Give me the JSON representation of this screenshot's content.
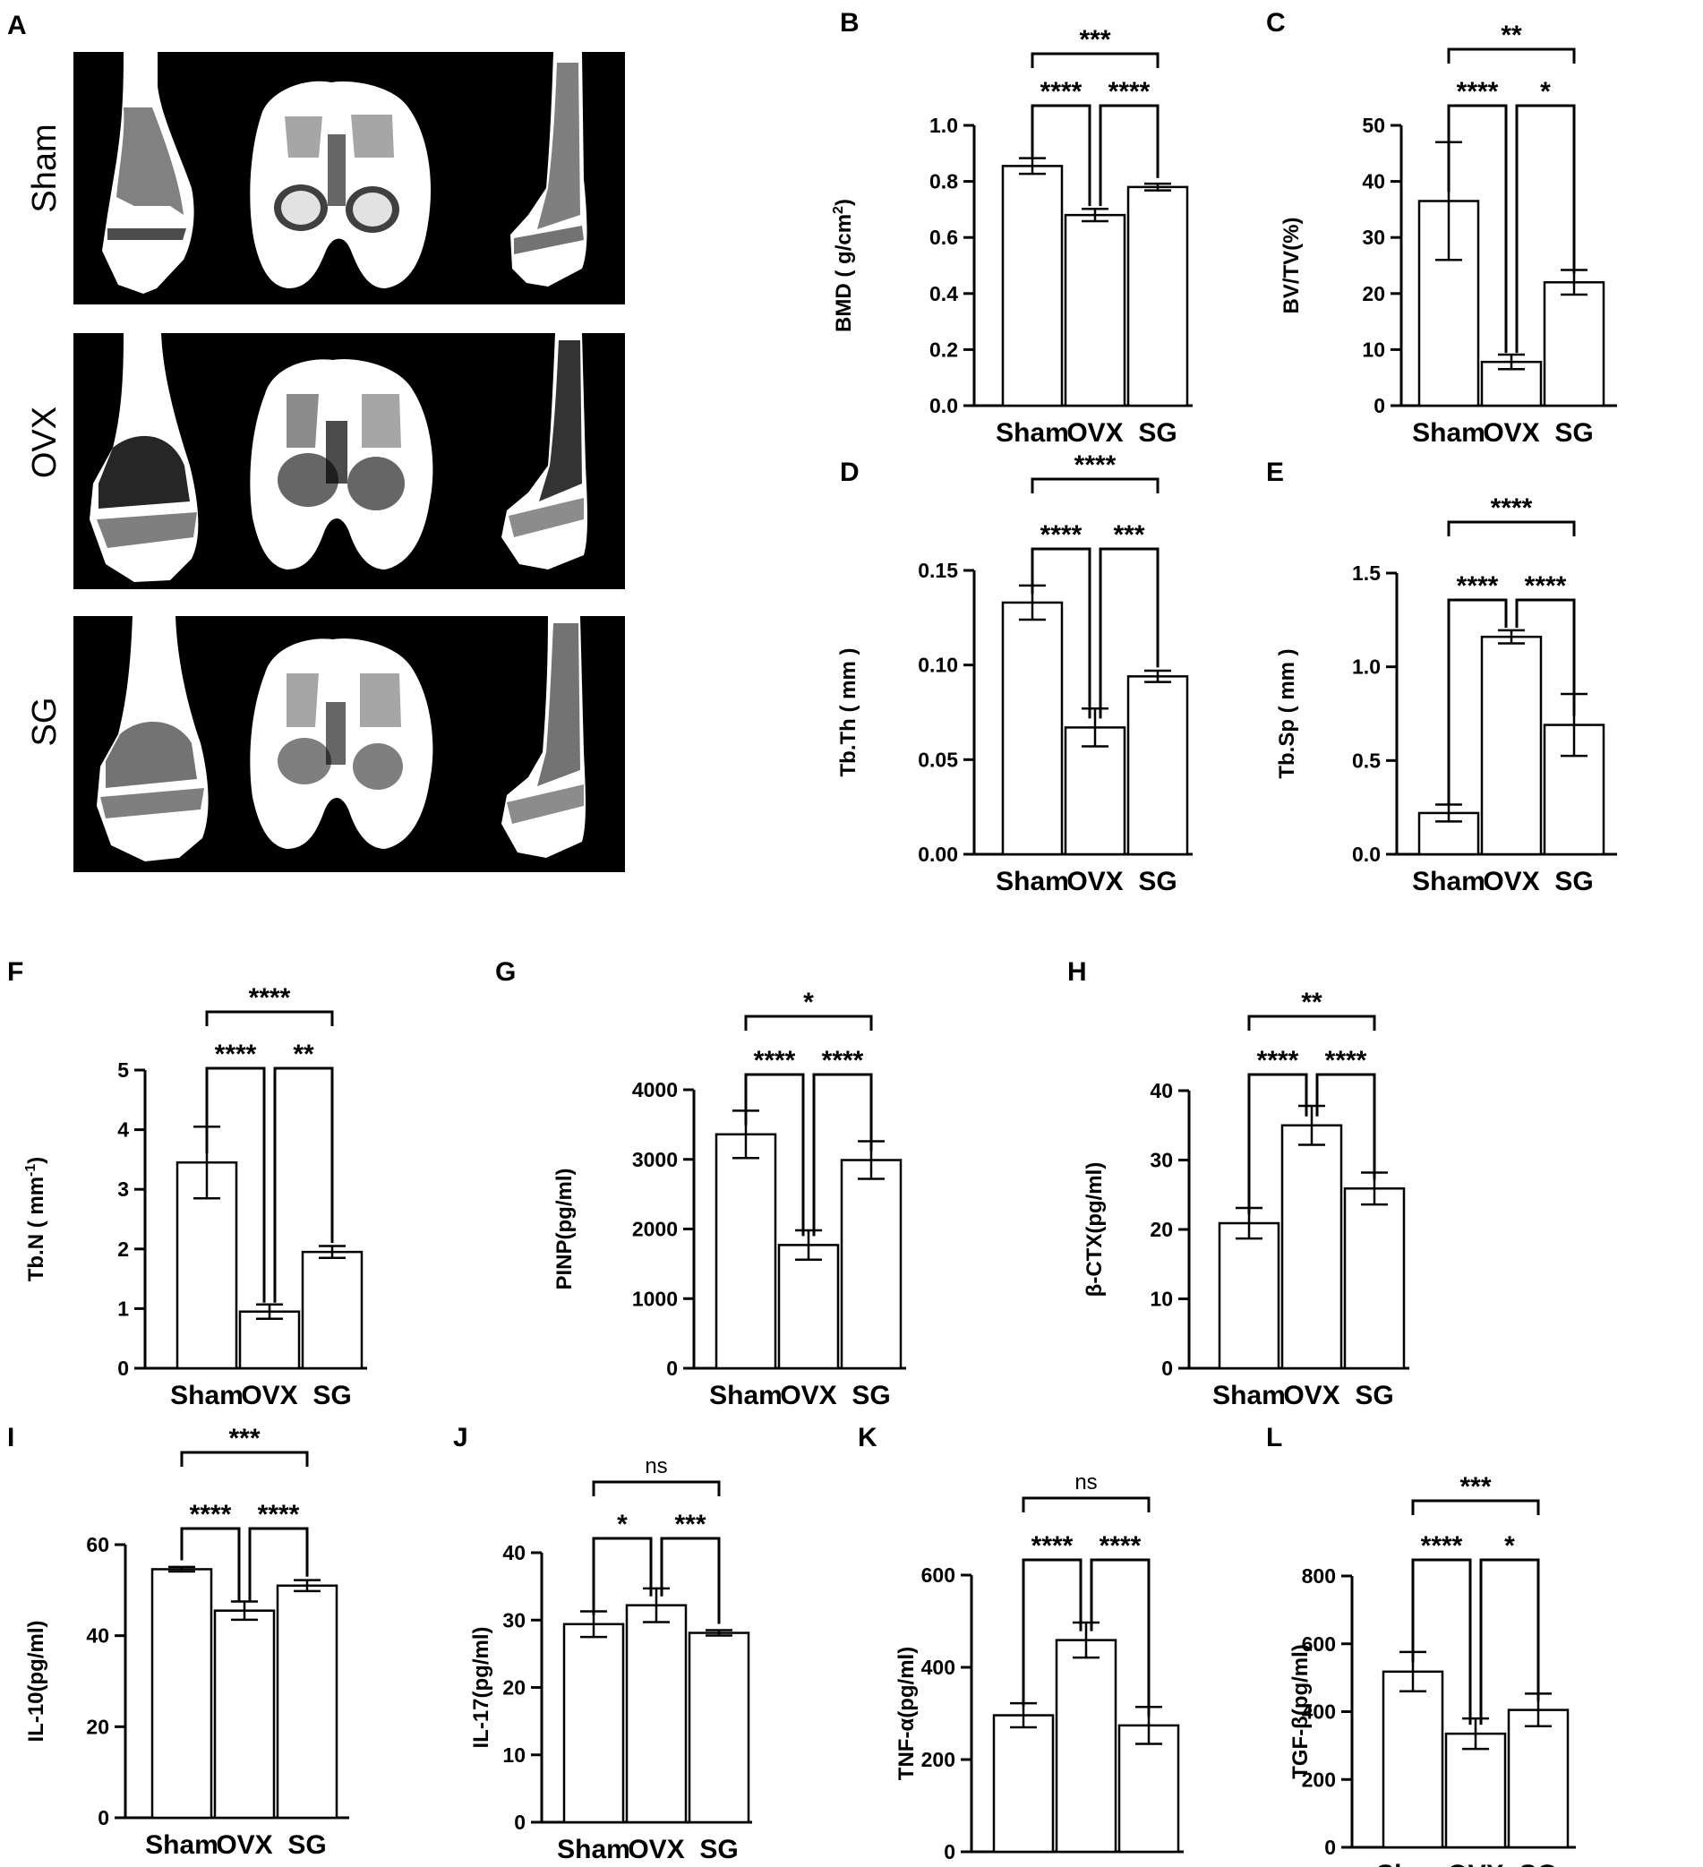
{
  "micro_ct": {
    "panel_letter": "A",
    "rows": [
      {
        "label": "Sham",
        "image": "micro-CT reconstruction of distal femur"
      },
      {
        "label": "OVX",
        "image": "micro-CT reconstruction of distal femur"
      },
      {
        "label": "SG",
        "image": "micro-CT reconstruction of distal femur"
      }
    ]
  },
  "chart_data": [
    {
      "panel": "B",
      "type": "bar",
      "categories": [
        "Sham",
        "OVX",
        "SG"
      ],
      "values": [
        0.855,
        0.68,
        0.78
      ],
      "errors": [
        0.028,
        0.022,
        0.012
      ],
      "ylabel": "BMD ( g/cm",
      "ylabel_sup": "2",
      "ylabel_end": ")",
      "ylim": [
        0,
        1.0
      ],
      "yticks": [
        0.0,
        0.2,
        0.4,
        0.6,
        0.8,
        1.0
      ],
      "tick_labels": [
        "0.0",
        "0.2",
        "0.4",
        "0.6",
        "0.8",
        "1.0"
      ],
      "significance": [
        {
          "from": 0,
          "to": 1,
          "label": "****"
        },
        {
          "from": 1,
          "to": 2,
          "label": "****"
        },
        {
          "from": 0,
          "to": 2,
          "label": "***"
        }
      ]
    },
    {
      "panel": "C",
      "type": "bar",
      "categories": [
        "Sham",
        "OVX",
        "SG"
      ],
      "values": [
        36.5,
        7.8,
        22.0
      ],
      "errors": [
        10.5,
        1.3,
        2.2
      ],
      "ylabel": "BV/TV(%)",
      "ylim": [
        0,
        50
      ],
      "yticks": [
        0,
        10,
        20,
        30,
        40,
        50
      ],
      "tick_labels": [
        "0",
        "10",
        "20",
        "30",
        "40",
        "50"
      ],
      "significance": [
        {
          "from": 0,
          "to": 1,
          "label": "****"
        },
        {
          "from": 1,
          "to": 2,
          "label": "*"
        },
        {
          "from": 0,
          "to": 2,
          "label": "**"
        }
      ]
    },
    {
      "panel": "D",
      "type": "bar",
      "categories": [
        "Sham",
        "OVX",
        "SG"
      ],
      "values": [
        0.133,
        0.067,
        0.094
      ],
      "errors": [
        0.009,
        0.01,
        0.003
      ],
      "ylabel": "Tb.Th ( mm )",
      "ylim": [
        0,
        0.15
      ],
      "yticks": [
        0.0,
        0.05,
        0.1,
        0.15
      ],
      "tick_labels": [
        "0.00",
        "0.05",
        "0.10",
        "0.15"
      ],
      "significance": [
        {
          "from": 0,
          "to": 1,
          "label": "****"
        },
        {
          "from": 1,
          "to": 2,
          "label": "***"
        },
        {
          "from": 0,
          "to": 2,
          "label": "****"
        }
      ]
    },
    {
      "panel": "E",
      "type": "bar",
      "categories": [
        "Sham",
        "OVX",
        "SG"
      ],
      "values": [
        0.22,
        1.16,
        0.69
      ],
      "errors": [
        0.045,
        0.035,
        0.165
      ],
      "ylabel": "Tb.Sp ( mm )",
      "ylim": [
        0,
        1.5
      ],
      "yticks": [
        0.0,
        0.5,
        1.0,
        1.5
      ],
      "tick_labels": [
        "0.0",
        "0.5",
        "1.0",
        "1.5"
      ],
      "significance": [
        {
          "from": 0,
          "to": 1,
          "label": "****"
        },
        {
          "from": 1,
          "to": 2,
          "label": "****"
        },
        {
          "from": 0,
          "to": 2,
          "label": "****"
        }
      ]
    },
    {
      "panel": "F",
      "type": "bar",
      "categories": [
        "Sham",
        "OVX",
        "SG"
      ],
      "values": [
        3.45,
        0.95,
        1.95
      ],
      "errors": [
        0.6,
        0.12,
        0.1
      ],
      "ylabel": "Tb.N ( mm",
      "ylabel_sup": "-1",
      "ylabel_end": ")",
      "ylim": [
        0,
        5
      ],
      "yticks": [
        0,
        1,
        2,
        3,
        4,
        5
      ],
      "tick_labels": [
        "0",
        "1",
        "2",
        "3",
        "4",
        "5"
      ],
      "significance": [
        {
          "from": 0,
          "to": 1,
          "label": "****"
        },
        {
          "from": 1,
          "to": 2,
          "label": "**"
        },
        {
          "from": 0,
          "to": 2,
          "label": "****"
        }
      ]
    },
    {
      "panel": "G",
      "type": "bar",
      "categories": [
        "Sham",
        "OVX",
        "SG"
      ],
      "values": [
        3360,
        1770,
        2990
      ],
      "errors": [
        340,
        210,
        270
      ],
      "ylabel": "PINP(pg/ml)",
      "ylim": [
        0,
        4000
      ],
      "yticks": [
        0,
        1000,
        2000,
        3000,
        4000
      ],
      "tick_labels": [
        "0",
        "1000",
        "2000",
        "3000",
        "4000"
      ],
      "significance": [
        {
          "from": 0,
          "to": 1,
          "label": "****"
        },
        {
          "from": 1,
          "to": 2,
          "label": "****"
        },
        {
          "from": 0,
          "to": 2,
          "label": "*"
        }
      ]
    },
    {
      "panel": "H",
      "type": "bar",
      "categories": [
        "Sham",
        "OVX",
        "SG"
      ],
      "values": [
        20.9,
        35.0,
        25.9
      ],
      "errors": [
        2.2,
        2.8,
        2.3
      ],
      "ylabel": "β-CTX(pg/ml)",
      "ylim": [
        0,
        40
      ],
      "yticks": [
        0,
        10,
        20,
        30,
        40
      ],
      "tick_labels": [
        "0",
        "10",
        "20",
        "30",
        "40"
      ],
      "significance": [
        {
          "from": 0,
          "to": 1,
          "label": "****"
        },
        {
          "from": 1,
          "to": 2,
          "label": "****"
        },
        {
          "from": 0,
          "to": 2,
          "label": "**"
        }
      ]
    },
    {
      "panel": "I",
      "type": "bar",
      "categories": [
        "Sham",
        "OVX",
        "SG"
      ],
      "values": [
        54.6,
        45.5,
        51.0
      ],
      "errors": [
        0.5,
        2.0,
        1.2
      ],
      "ylabel": "IL-10(pg/ml)",
      "ylim": [
        0,
        60
      ],
      "yticks": [
        0,
        20,
        40,
        60
      ],
      "tick_labels": [
        "0",
        "20",
        "40",
        "60"
      ],
      "significance": [
        {
          "from": 0,
          "to": 1,
          "label": "****"
        },
        {
          "from": 1,
          "to": 2,
          "label": "****"
        },
        {
          "from": 0,
          "to": 2,
          "label": "***"
        }
      ]
    },
    {
      "panel": "J",
      "type": "bar",
      "categories": [
        "Sham",
        "OVX",
        "SG"
      ],
      "values": [
        29.4,
        32.2,
        28.1
      ],
      "errors": [
        1.9,
        2.5,
        0.4
      ],
      "ylabel": "IL-17(pg/ml)",
      "ylim": [
        0,
        40
      ],
      "yticks": [
        0,
        10,
        20,
        30,
        40
      ],
      "tick_labels": [
        "0",
        "10",
        "20",
        "30",
        "40"
      ],
      "significance": [
        {
          "from": 0,
          "to": 1,
          "label": "*"
        },
        {
          "from": 1,
          "to": 2,
          "label": "***"
        },
        {
          "from": 0,
          "to": 2,
          "label": "ns"
        }
      ]
    },
    {
      "panel": "K",
      "type": "bar",
      "categories": [
        "Sham",
        "OVX",
        "SG"
      ],
      "values": [
        296,
        459,
        274
      ],
      "errors": [
        26,
        38,
        40
      ],
      "ylabel": "TNF-α(pg/ml)",
      "ylim": [
        0,
        600
      ],
      "yticks": [
        0,
        200,
        400,
        600
      ],
      "tick_labels": [
        "0",
        "200",
        "400",
        "600"
      ],
      "significance": [
        {
          "from": 0,
          "to": 1,
          "label": "****"
        },
        {
          "from": 1,
          "to": 2,
          "label": "****"
        },
        {
          "from": 0,
          "to": 2,
          "label": "ns"
        }
      ]
    },
    {
      "panel": "L",
      "type": "bar",
      "categories": [
        "Sham",
        "OVX",
        "SG"
      ],
      "values": [
        518,
        335,
        405
      ],
      "errors": [
        58,
        45,
        48
      ],
      "ylabel": "TGF-β(pg/ml)",
      "ylim": [
        0,
        800
      ],
      "yticks": [
        0,
        200,
        400,
        600,
        800
      ],
      "tick_labels": [
        "0",
        "200",
        "400",
        "600",
        "800"
      ],
      "significance": [
        {
          "from": 0,
          "to": 1,
          "label": "****"
        },
        {
          "from": 1,
          "to": 2,
          "label": "*"
        },
        {
          "from": 0,
          "to": 2,
          "label": "***"
        }
      ]
    }
  ]
}
